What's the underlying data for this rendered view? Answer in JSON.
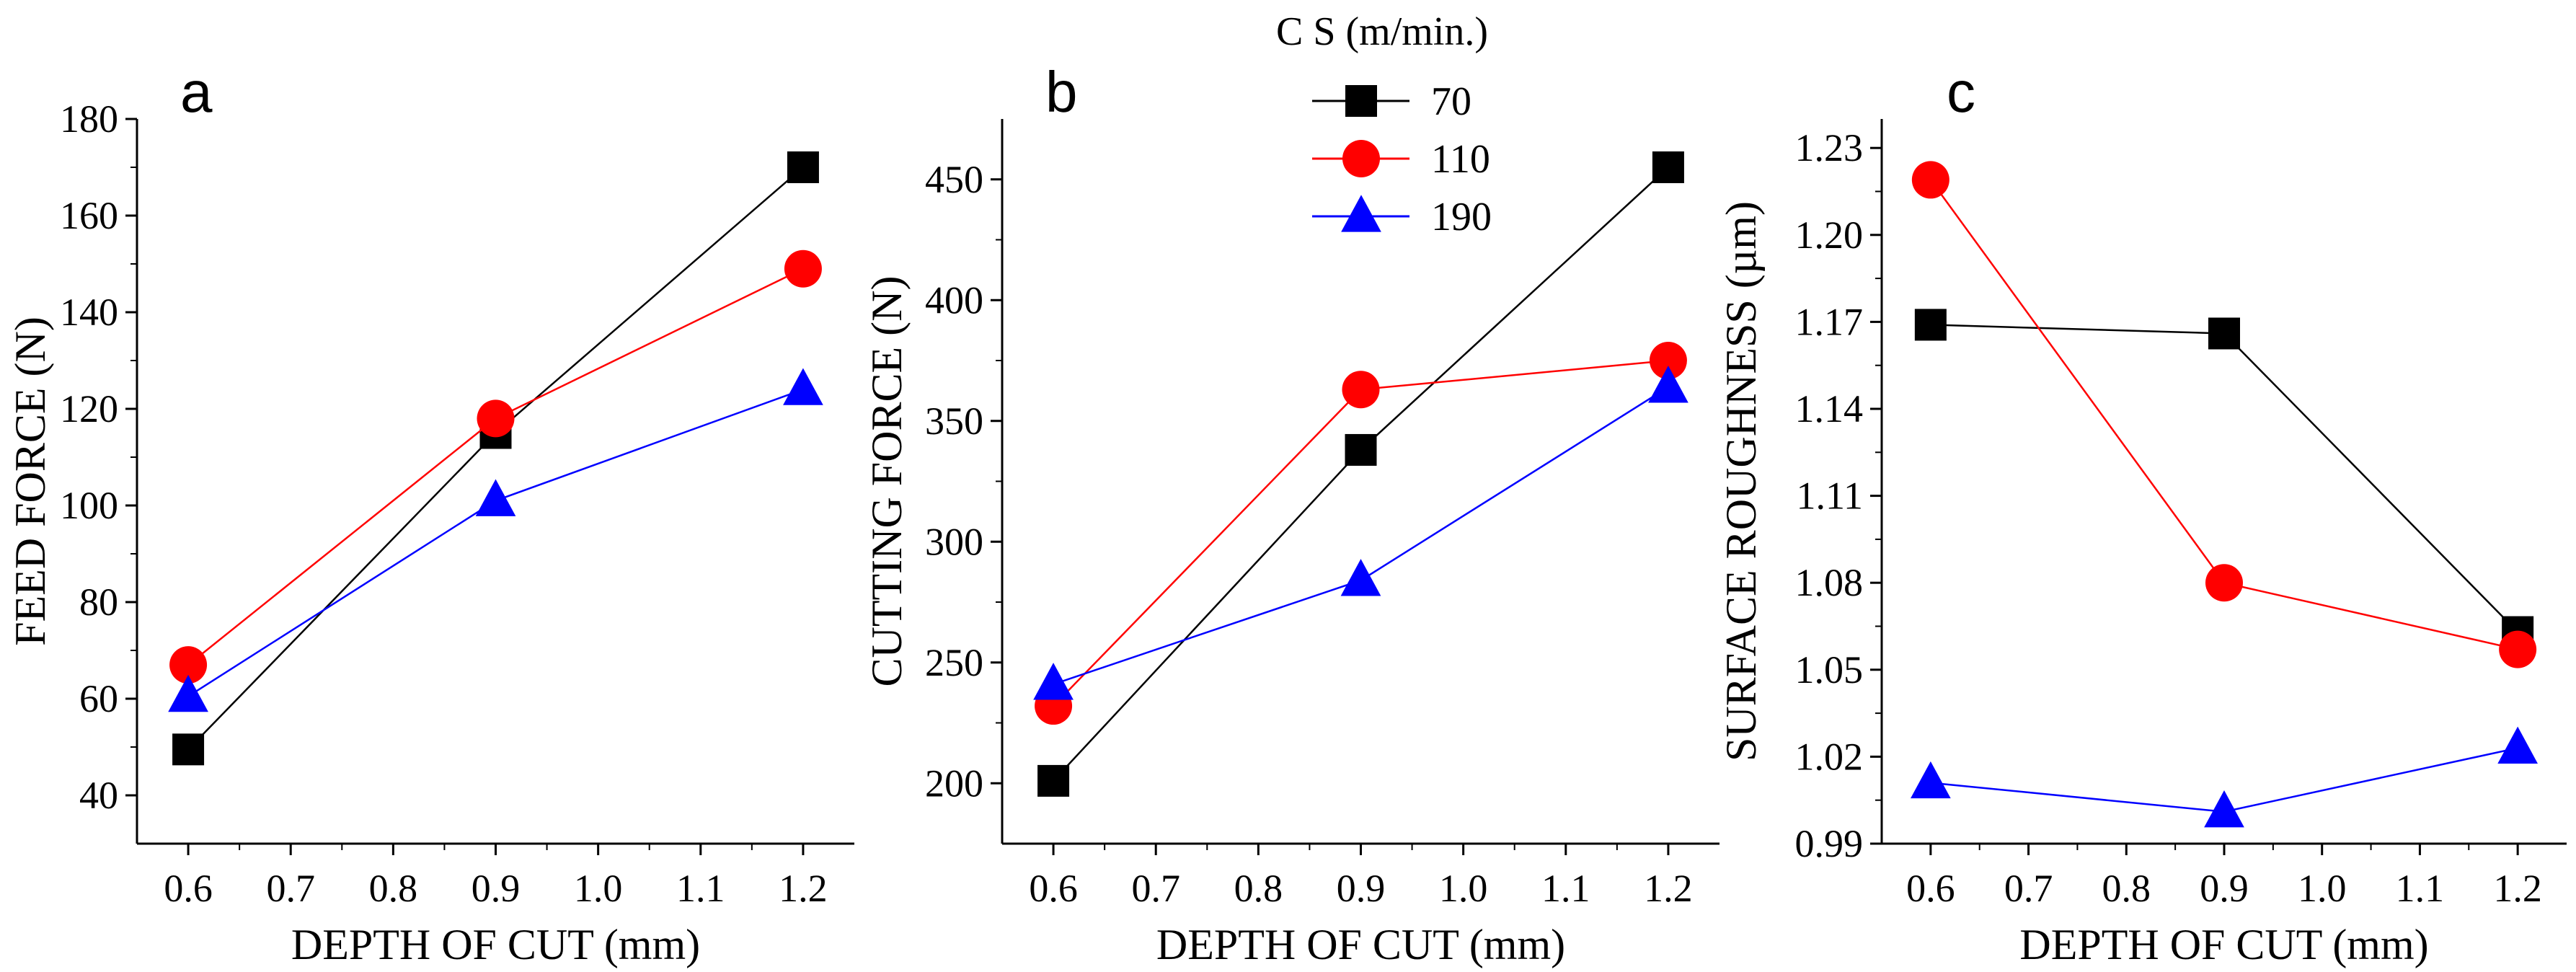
{
  "legend": {
    "title": "C S (m/min.)",
    "entries": [
      {
        "label": "70",
        "color": "#000000",
        "marker": "square"
      },
      {
        "label": "110",
        "color": "#ff0000",
        "marker": "circle"
      },
      {
        "label": "190",
        "color": "#0000ff",
        "marker": "triangle"
      }
    ]
  },
  "chart_data": [
    {
      "panel_label": "a",
      "type": "line",
      "xlabel": "DEPTH OF CUT (mm)",
      "ylabel": "FEED FORCE (N)",
      "xlim": [
        0.55,
        1.25
      ],
      "ylim": [
        30,
        180
      ],
      "xticks": [
        "0.6",
        "0.7",
        "0.8",
        "0.9",
        "1.0",
        "1.1",
        "1.2"
      ],
      "yticks": [
        "40",
        "60",
        "80",
        "100",
        "120",
        "140",
        "160",
        "180"
      ],
      "x": [
        0.6,
        0.9,
        1.2
      ],
      "series": [
        {
          "name": "70",
          "values": [
            49.5,
            115,
            170
          ]
        },
        {
          "name": "110",
          "values": [
            67,
            118,
            149
          ]
        },
        {
          "name": "190",
          "values": [
            60.5,
            101,
            124
          ]
        }
      ]
    },
    {
      "panel_label": "b",
      "type": "line",
      "xlabel": "DEPTH OF CUT (mm)",
      "ylabel": "CUTTING FORCE (N)",
      "xlim": [
        0.55,
        1.25
      ],
      "ylim": [
        175,
        475
      ],
      "xticks": [
        "0.6",
        "0.7",
        "0.8",
        "0.9",
        "1.0",
        "1.1",
        "1.2"
      ],
      "yticks": [
        "200",
        "250",
        "300",
        "350",
        "400",
        "450"
      ],
      "x": [
        0.6,
        0.9,
        1.2
      ],
      "series": [
        {
          "name": "70",
          "values": [
            201,
            338,
            455
          ]
        },
        {
          "name": "110",
          "values": [
            232,
            363,
            375
          ]
        },
        {
          "name": "190",
          "values": [
            241,
            284,
            364
          ]
        }
      ]
    },
    {
      "panel_label": "c",
      "type": "line",
      "xlabel": "DEPTH OF CUT (mm)",
      "ylabel": "SURFACE ROUGHNESS (µm)",
      "xlim": [
        0.55,
        1.25
      ],
      "ylim": [
        0.99,
        1.24
      ],
      "xticks": [
        "0.6",
        "0.7",
        "0.8",
        "0.9",
        "1.0",
        "1.1",
        "1.2"
      ],
      "yticks": [
        "0.99",
        "1.02",
        "1.05",
        "1.08",
        "1.11",
        "1.14",
        "1.17",
        "1.20",
        "1.23"
      ],
      "x": [
        0.6,
        0.9,
        1.2
      ],
      "series": [
        {
          "name": "70",
          "values": [
            1.169,
            1.166,
            1.063
          ]
        },
        {
          "name": "110",
          "values": [
            1.219,
            1.08,
            1.057
          ]
        },
        {
          "name": "190",
          "values": [
            1.011,
            1.001,
            1.023
          ]
        }
      ]
    }
  ]
}
